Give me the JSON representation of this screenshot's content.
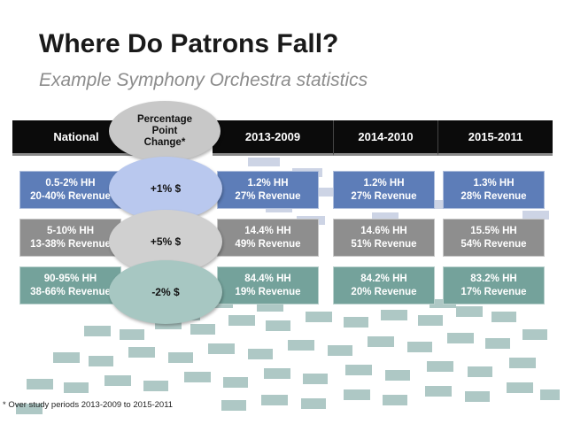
{
  "slide": {
    "title": "Where Do Patrons Fall?",
    "subtitle": "Example Symphony Orchestra statistics",
    "footnote": "* Over study periods 2013-2009 to 2015-2011"
  },
  "columns": {
    "national": "National",
    "change": "Percentage\nPoint\nChange*",
    "periods": [
      "2013-2009",
      "2014-2010",
      "2015-2011"
    ]
  },
  "rows": [
    {
      "national": {
        "hh": "0.5-2% HH",
        "rev": "20-40% Revenue"
      },
      "change": "+1% $",
      "periods": [
        {
          "hh": "1.2% HH",
          "rev": "27% Revenue"
        },
        {
          "hh": "1.2% HH",
          "rev": "27% Revenue"
        },
        {
          "hh": "1.3% HH",
          "rev": "28% Revenue"
        }
      ]
    },
    {
      "national": {
        "hh": "5-10% HH",
        "rev": "13-38% Revenue"
      },
      "change": "+5% $",
      "periods": [
        {
          "hh": "14.4% HH",
          "rev": "49% Revenue"
        },
        {
          "hh": "14.6% HH",
          "rev": "51% Revenue"
        },
        {
          "hh": "15.5% HH",
          "rev": "54% Revenue"
        }
      ]
    },
    {
      "national": {
        "hh": "90-95% HH",
        "rev": "38-66% Revenue"
      },
      "change": "-2% $",
      "periods": [
        {
          "hh": "84.4% HH",
          "rev": "19% Revenue"
        },
        {
          "hh": "84.2% HH",
          "rev": "20% Revenue"
        },
        {
          "hh": "83.2% HH",
          "rev": "17% Revenue"
        }
      ]
    }
  ],
  "colors": {
    "top_tier": "#5d7db8",
    "middle_tier": "#8e8e8e",
    "bottom_tier": "#74a29b",
    "header": "#0b0b0b"
  }
}
